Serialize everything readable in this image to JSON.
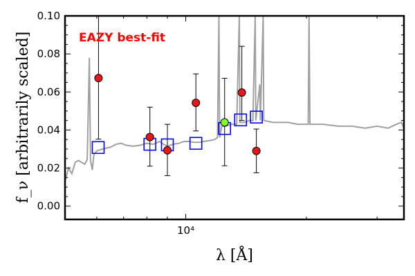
{
  "chart_data": {
    "type": "scatter",
    "title": "",
    "annotation": "EAZY best-fit",
    "annotation_color": "#ff0000",
    "xlabel": "λ [Å]",
    "ylabel": "f_ν [arbitrarily scaled]",
    "x_scale": "log",
    "xlim": [
      5000,
      35000
    ],
    "ylim": [
      -0.007,
      0.1
    ],
    "x_tick_labels": [
      {
        "value": 10000,
        "text": "10⁴"
      }
    ],
    "y_ticks": [
      0.0,
      0.02,
      0.04,
      0.06,
      0.08,
      0.1
    ],
    "y_tick_labels": [
      "0.00",
      "0.02",
      "0.04",
      "0.06",
      "0.08",
      "0.10"
    ],
    "grid": false,
    "colors": {
      "template": "#a0a0a0",
      "observed_fill": "#e8161b",
      "highlight_fill": "#7fff2a",
      "model_box": "#0000ff",
      "errorbar": "#000000"
    },
    "series": [
      {
        "kind": "observed",
        "points": [
          {
            "x": 6060,
            "y": 0.0673,
            "yerr_lo": 0.0321,
            "yerr_hi": 0.0327
          },
          {
            "x": 8140,
            "y": 0.0363,
            "yerr_lo": 0.0153,
            "yerr_hi": 0.0157
          },
          {
            "x": 9000,
            "y": 0.0293,
            "yerr_lo": 0.0133,
            "yerr_hi": 0.0137
          },
          {
            "x": 10600,
            "y": 0.0543,
            "yerr_lo": 0.0148,
            "yerr_hi": 0.0152
          },
          {
            "x": 12500,
            "y": 0.044,
            "yerr_lo": 0.0228,
            "yerr_hi": 0.0232,
            "highlight": true
          },
          {
            "x": 13800,
            "y": 0.0597,
            "yerr_lo": 0.0147,
            "yerr_hi": 0.0243
          },
          {
            "x": 15000,
            "y": 0.029,
            "yerr_lo": 0.0115,
            "yerr_hi": 0.0115
          }
        ]
      },
      {
        "kind": "model",
        "points": [
          {
            "x": 6050,
            "y": 0.0308
          },
          {
            "x": 8140,
            "y": 0.0325
          },
          {
            "x": 9000,
            "y": 0.0322
          },
          {
            "x": 10600,
            "y": 0.033
          },
          {
            "x": 12500,
            "y": 0.0408
          },
          {
            "x": 13700,
            "y": 0.0453
          },
          {
            "x": 15000,
            "y": 0.0468
          }
        ]
      },
      {
        "kind": "template",
        "points": [
          [
            5000,
            0.013
          ],
          [
            5100,
            0.02
          ],
          [
            5200,
            0.017
          ],
          [
            5300,
            0.023
          ],
          [
            5400,
            0.024
          ],
          [
            5500,
            0.023
          ],
          [
            5600,
            0.022
          ],
          [
            5680,
            0.0245
          ],
          [
            5750,
            0.078
          ],
          [
            5790,
            0.024
          ],
          [
            5850,
            0.019
          ],
          [
            5900,
            0.027
          ],
          [
            6000,
            0.029
          ],
          [
            6200,
            0.03
          ],
          [
            6500,
            0.031
          ],
          [
            6700,
            0.0325
          ],
          [
            6900,
            0.033
          ],
          [
            7100,
            0.032
          ],
          [
            7400,
            0.0315
          ],
          [
            7700,
            0.032
          ],
          [
            8000,
            0.033
          ],
          [
            8300,
            0.0325
          ],
          [
            8600,
            0.034
          ],
          [
            8800,
            0.0325
          ],
          [
            9000,
            0.0315
          ],
          [
            9300,
            0.0325
          ],
          [
            9600,
            0.033
          ],
          [
            9900,
            0.034
          ],
          [
            10200,
            0.034
          ],
          [
            10500,
            0.0335
          ],
          [
            10800,
            0.0335
          ],
          [
            11100,
            0.034
          ],
          [
            11500,
            0.0345
          ],
          [
            11800,
            0.035
          ],
          [
            12000,
            0.036
          ],
          [
            12100,
            0.1
          ],
          [
            12150,
            0.036
          ],
          [
            12300,
            0.042
          ],
          [
            12600,
            0.042
          ],
          [
            13000,
            0.043
          ],
          [
            13400,
            0.043
          ],
          [
            13600,
            0.1
          ],
          [
            13650,
            0.044
          ],
          [
            14000,
            0.044
          ],
          [
            14400,
            0.045
          ],
          [
            14700,
            0.045
          ],
          [
            14900,
            0.1
          ],
          [
            14950,
            0.045
          ],
          [
            15300,
            0.064
          ],
          [
            15350,
            0.045
          ],
          [
            15600,
            0.1
          ],
          [
            15650,
            0.045
          ],
          [
            16500,
            0.044
          ],
          [
            18000,
            0.044
          ],
          [
            19000,
            0.043
          ],
          [
            20200,
            0.043
          ],
          [
            20300,
            0.1
          ],
          [
            20400,
            0.043
          ],
          [
            22000,
            0.043
          ],
          [
            24000,
            0.042
          ],
          [
            26000,
            0.042
          ],
          [
            28000,
            0.041
          ],
          [
            30000,
            0.042
          ],
          [
            32000,
            0.041
          ],
          [
            33500,
            0.043
          ],
          [
            34500,
            0.044
          ],
          [
            35000,
            0.041
          ]
        ]
      }
    ]
  }
}
